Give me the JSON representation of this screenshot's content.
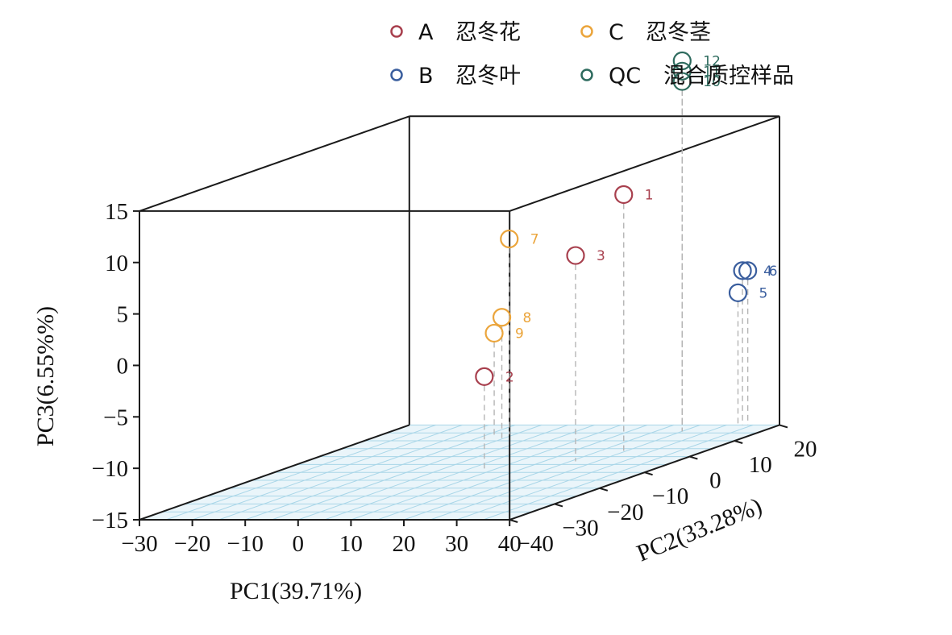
{
  "chart_data": {
    "type": "scatter",
    "projection": "3d",
    "xlabel": "PC1(39.71%)",
    "ylabel": "PC2(33.28%)",
    "zlabel": "PC3(6.55%%)",
    "xlim": [
      -30,
      40
    ],
    "ylim": [
      -40,
      20
    ],
    "zlim": [
      -15,
      15
    ],
    "xticks": [
      "−30",
      "−20",
      "−10",
      "0",
      "10",
      "20",
      "30",
      "40"
    ],
    "yticks": [
      "−40",
      "−30",
      "−20",
      "−10",
      "0",
      "10",
      "20"
    ],
    "zticks": [
      "15",
      "10",
      "5",
      "0",
      "−5",
      "−10",
      "−15"
    ],
    "grid": "floor",
    "legend_position": "top",
    "series": [
      {
        "name": "A 忍冬花",
        "legend_letter": "A",
        "legend_text": "忍冬花",
        "color": "#a8404e",
        "points": [
          {
            "label": "1",
            "x": 25,
            "y": 3,
            "z": 10
          },
          {
            "label": "2",
            "x": 8,
            "y": -8,
            "z": -6
          },
          {
            "label": "3",
            "x": 21,
            "y": -3,
            "z": 5
          }
        ]
      },
      {
        "name": "B 忍冬叶",
        "legend_letter": "B",
        "legend_text": "忍冬叶",
        "color": "#3a5e9e",
        "points": [
          {
            "label": "4",
            "x": 33,
            "y": 20,
            "z": 0
          },
          {
            "label": "5",
            "x": 33,
            "y": 19,
            "z": -2
          },
          {
            "label": "6",
            "x": 34,
            "y": 20,
            "z": 0
          }
        ]
      },
      {
        "name": "C 忍冬茎",
        "legend_letter": "C",
        "legend_text": "忍冬茎",
        "color": "#eba53c",
        "points": [
          {
            "label": "7",
            "x": -6,
            "y": 14,
            "z": 4
          },
          {
            "label": "8",
            "x": -4,
            "y": 10,
            "z": -3
          },
          {
            "label": "9",
            "x": -8,
            "y": 13,
            "z": -5
          }
        ]
      },
      {
        "name": "QC 混合质控样品",
        "legend_letter": "QC",
        "legend_text": "混合质控样品",
        "color": "#2e6b5e",
        "points": [
          {
            "label": "10",
            "x": 25,
            "y": 16,
            "z": 19
          },
          {
            "label": "11",
            "x": 25,
            "y": 16,
            "z": 20
          },
          {
            "label": "12",
            "x": 25,
            "y": 16,
            "z": 21
          }
        ]
      }
    ]
  }
}
